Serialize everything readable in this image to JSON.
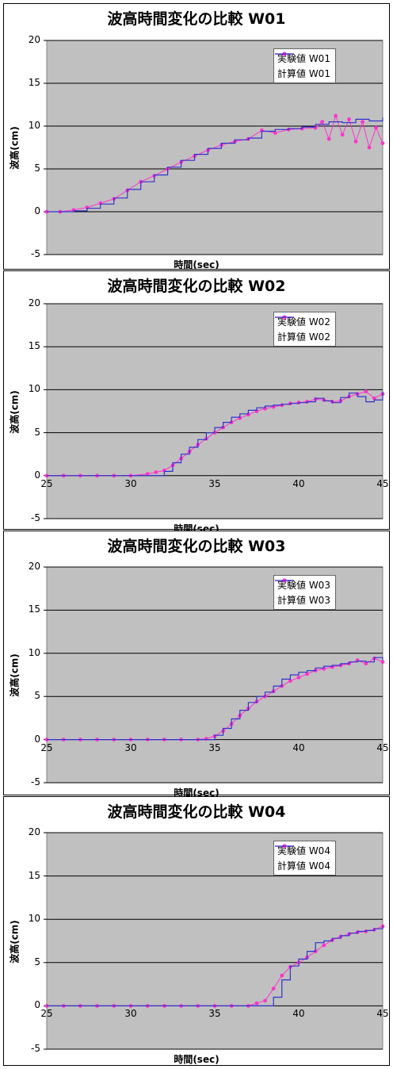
{
  "colors": {
    "plot_bg": "#c0c0c0",
    "grid": "#000000",
    "experiment": "#ff33cc",
    "calculated": "#3333cc"
  },
  "chart_data": [
    {
      "type": "line",
      "title": "波高時間変化の比較 W01",
      "xlabel": "時間(sec)",
      "ylabel": "波高(cm)",
      "ylim": [
        -5,
        20
      ],
      "yticks": [
        "-5",
        "0",
        "5",
        "10",
        "15",
        "20"
      ],
      "xlim": [
        25,
        45
      ],
      "xticks": [],
      "legend_position": "top-right",
      "series": [
        {
          "name": "実験値 W01",
          "kind": "experiment",
          "x": [
            25,
            25.8,
            26.6,
            27.4,
            28.2,
            29,
            29.8,
            30.6,
            31.4,
            32.2,
            33,
            33.8,
            34.6,
            35.4,
            36.2,
            37,
            37.8,
            38.6,
            39.4,
            40.2,
            41,
            41.4,
            41.8,
            42.2,
            42.6,
            43,
            43.4,
            43.8,
            44.2,
            44.6,
            45
          ],
          "y": [
            0,
            0,
            0.2,
            0.5,
            1,
            1.5,
            2.5,
            3.5,
            4.2,
            5,
            5.8,
            6.5,
            7.2,
            7.8,
            8.2,
            8.5,
            9.5,
            9.2,
            9.6,
            9.7,
            9.8,
            10.5,
            8.5,
            11.2,
            9,
            10.8,
            8.2,
            10.5,
            7.5,
            9.8,
            8
          ]
        },
        {
          "name": "計算値 W01",
          "kind": "calculated",
          "x": [
            25,
            26.6,
            27.4,
            28.2,
            29,
            29.8,
            30.6,
            31.4,
            32.2,
            33,
            33.8,
            34.6,
            35.4,
            36.2,
            37,
            37.8,
            38.6,
            39.4,
            40.2,
            41,
            41.8,
            42.6,
            43.4,
            44.2,
            45
          ],
          "y": [
            0,
            0.1,
            0.4,
            0.9,
            1.6,
            2.6,
            3.5,
            4.3,
            5.2,
            6,
            6.7,
            7.4,
            8,
            8.4,
            8.6,
            9.4,
            9.6,
            9.7,
            9.9,
            10.2,
            10.5,
            10.4,
            10.8,
            10.6,
            11
          ]
        }
      ]
    },
    {
      "type": "line",
      "title": "波高時間変化の比較 W02",
      "xlabel": "時間(sec)",
      "ylabel": "波高(cm)",
      "ylim": [
        -5,
        20
      ],
      "yticks": [
        "-5",
        "0",
        "5",
        "10",
        "15",
        "20"
      ],
      "xlim": [
        25,
        45
      ],
      "xticks": [
        "25",
        "30",
        "35",
        "40",
        "45"
      ],
      "legend_position": "top-right",
      "series": [
        {
          "name": "実験値 W02",
          "kind": "experiment",
          "x": [
            25,
            26,
            27,
            28,
            29,
            30,
            31,
            31.5,
            32,
            32.5,
            33,
            33.5,
            34,
            34.5,
            35,
            35.5,
            36,
            36.5,
            37,
            37.5,
            38,
            38.5,
            39,
            39.5,
            40,
            40.5,
            41,
            41.5,
            42,
            42.5,
            43,
            43.5,
            44,
            44.5,
            45
          ],
          "y": [
            0,
            0,
            0,
            0,
            0,
            0,
            0.2,
            0.4,
            0.6,
            1.2,
            2,
            2.8,
            3.6,
            4.3,
            5,
            5.6,
            6.2,
            6.7,
            7.1,
            7.5,
            7.8,
            8,
            8.2,
            8.4,
            8.5,
            8.6,
            8.9,
            8.8,
            8.6,
            8.7,
            9.2,
            9.5,
            9.8,
            9,
            9.5
          ]
        },
        {
          "name": "計算値 W02",
          "kind": "calculated",
          "x": [
            25,
            31,
            32,
            32.5,
            33,
            33.5,
            34,
            34.5,
            35,
            35.5,
            36,
            36.5,
            37,
            37.5,
            38,
            38.5,
            39,
            39.5,
            40,
            40.5,
            41,
            41.5,
            42,
            42.5,
            43,
            43.5,
            44,
            44.5,
            45
          ],
          "y": [
            0,
            0,
            0.5,
            1.5,
            2.5,
            3.3,
            4.2,
            5,
            5.6,
            6.2,
            6.8,
            7.2,
            7.6,
            7.9,
            8.1,
            8.2,
            8.3,
            8.4,
            8.5,
            8.6,
            9,
            8.7,
            8.5,
            9.1,
            9.6,
            9.2,
            8.6,
            8.8,
            9.8
          ]
        }
      ]
    },
    {
      "type": "line",
      "title": "波高時間変化の比較 W03",
      "xlabel": "時間(sec)",
      "ylabel": "波高(cm)",
      "ylim": [
        -5,
        20
      ],
      "yticks": [
        "-5",
        "0",
        "5",
        "10",
        "15",
        "20"
      ],
      "xlim": [
        25,
        45
      ],
      "xticks": [
        "25",
        "30",
        "35",
        "40",
        "45"
      ],
      "legend_position": "top-right",
      "series": [
        {
          "name": "実験値 W03",
          "kind": "experiment",
          "x": [
            25,
            26,
            27,
            28,
            29,
            30,
            31,
            32,
            33,
            34,
            34.5,
            35,
            35.5,
            36,
            36.5,
            37,
            37.5,
            38,
            38.5,
            39,
            39.5,
            40,
            40.5,
            41,
            41.5,
            42,
            42.5,
            43,
            43.5,
            44,
            44.5,
            45
          ],
          "y": [
            0,
            0,
            0,
            0,
            0,
            0,
            0,
            0,
            0,
            0,
            0.1,
            0.4,
            1,
            1.8,
            2.8,
            3.6,
            4.4,
            5,
            5.6,
            6.2,
            6.8,
            7.2,
            7.6,
            8,
            8.2,
            8.4,
            8.6,
            8.8,
            9.2,
            8.8,
            9.4,
            9
          ]
        },
        {
          "name": "計算値 W03",
          "kind": "calculated",
          "x": [
            25,
            34.5,
            35,
            35.5,
            36,
            36.5,
            37,
            37.5,
            38,
            38.5,
            39,
            39.5,
            40,
            40.5,
            41,
            41.5,
            42,
            42.5,
            43,
            43.5,
            44,
            44.5,
            45
          ],
          "y": [
            0,
            0,
            0.5,
            1.3,
            2.4,
            3.4,
            4.3,
            5,
            5.5,
            6.2,
            7,
            7.5,
            7.8,
            8,
            8.3,
            8.5,
            8.6,
            8.8,
            9,
            9.1,
            9,
            9.5,
            9.2
          ]
        }
      ]
    },
    {
      "type": "line",
      "title": "波高時間変化の比較 W04",
      "xlabel": "時間(sec)",
      "ylabel": "波高(cm)",
      "ylim": [
        -5,
        20
      ],
      "yticks": [
        "-5",
        "0",
        "5",
        "10",
        "15",
        "20"
      ],
      "xlim": [
        25,
        45
      ],
      "xticks": [
        "25",
        "30",
        "35",
        "40",
        "45"
      ],
      "legend_position": "top-right",
      "series": [
        {
          "name": "実験値 W04",
          "kind": "experiment",
          "x": [
            25,
            26,
            27,
            28,
            29,
            30,
            31,
            32,
            33,
            34,
            35,
            36,
            37,
            37.5,
            38,
            38.5,
            39,
            39.5,
            40,
            40.5,
            41,
            41.5,
            42,
            42.5,
            43,
            43.5,
            44,
            44.5,
            45
          ],
          "y": [
            0,
            0,
            0,
            0,
            0,
            0,
            0,
            0,
            0,
            0,
            0,
            0,
            0,
            0.3,
            0.6,
            2,
            3.5,
            4.5,
            5,
            5.6,
            6.3,
            7,
            7.6,
            8,
            8.3,
            8.5,
            8.6,
            8.8,
            9.2
          ]
        },
        {
          "name": "計算値 W04",
          "kind": "calculated",
          "x": [
            25,
            38,
            38.5,
            39,
            39.5,
            40,
            40.5,
            41,
            41.5,
            42,
            42.5,
            43,
            43.5,
            44,
            44.5,
            45
          ],
          "y": [
            0,
            0,
            1,
            3,
            4.6,
            5.4,
            6.3,
            7.3,
            7.5,
            7.8,
            8.1,
            8.4,
            8.6,
            8.7,
            8.9,
            9.2
          ]
        }
      ]
    }
  ]
}
